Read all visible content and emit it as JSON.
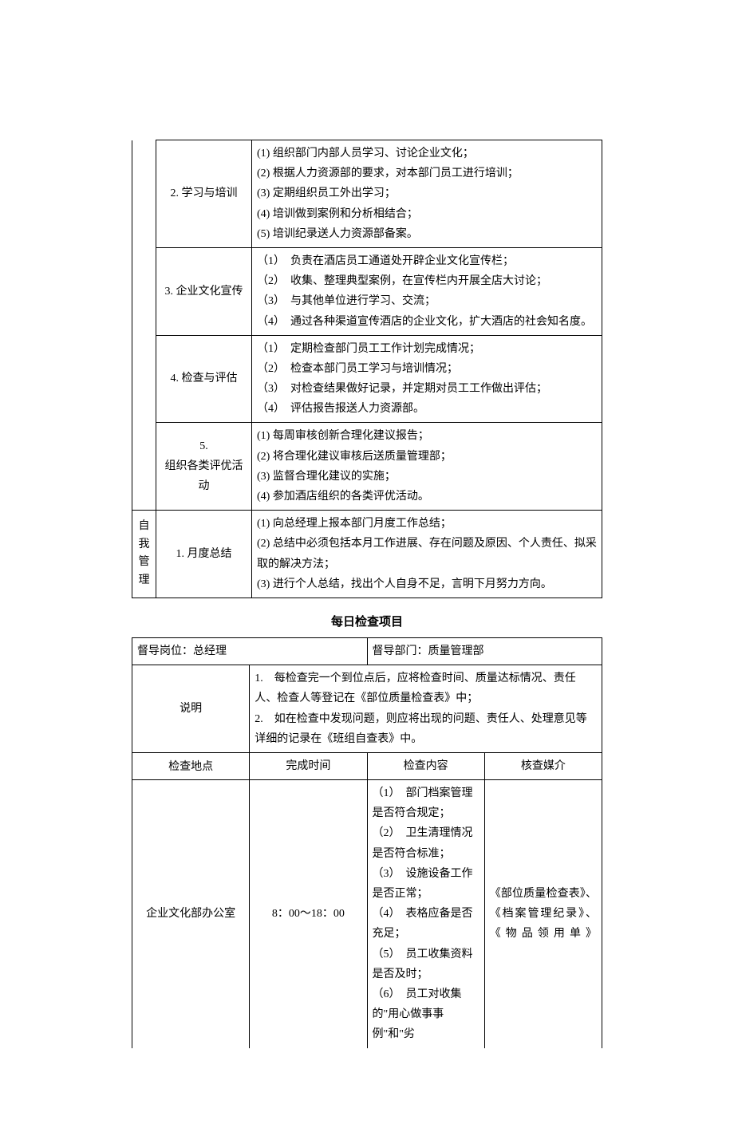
{
  "table1": {
    "rows": [
      {
        "num": "2.",
        "label": "学习与培训",
        "items": [
          "(1) 组织部门内部人员学习、讨论企业文化；",
          "(2) 根据人力资源部的要求，对本部门员工进行培训；",
          "(3) 定期组织员工外出学习；",
          "(4) 培训做到案例和分析相结合；",
          "(5) 培训纪录送人力资源部备案。"
        ]
      },
      {
        "num": "3.",
        "label": "企业文化宣传",
        "items": [
          "（1）　负责在酒店员工通道处开辟企业文化宣传栏；",
          "（2）　收集、整理典型案例，在宣传栏内开展全店大讨论；",
          "（3）　与其他单位进行学习、交流；",
          "（4）　通过各种渠道宣传酒店的企业文化，扩大酒店的社会知名度。"
        ]
      },
      {
        "num": "4.",
        "label": "检查与评估",
        "items": [
          "（1）　定期检查部门员工工作计划完成情况；",
          "（2）　检查本部门员工学习与培训情况；",
          "（3）　对检查结果做好记录，并定期对员工工作做出评估；",
          "（4）　评估报告报送人力资源部。"
        ]
      },
      {
        "num": "5.",
        "label": "组织各类评优活动",
        "items": [
          "(1) 每周审核创新合理化建议报告；",
          "(2) 将合理化建议审核后送质量管理部；",
          "(3) 监督合理化建议的实施；",
          "(4) 参加酒店组织的各类评优活动。"
        ]
      }
    ],
    "group2": {
      "header": "自我管理",
      "num": "1.",
      "label": "月度总结",
      "items": [
        "(1) 向总经理上报本部门月度工作总结；",
        "(2) 总结中必须包括本月工作进展、存在问题及原因、个人责任、拟采取的解决方法；",
        "(3) 进行个人总结，找出个人自身不足，言明下月努力方向。"
      ]
    }
  },
  "section_title": "每日检查项目",
  "table2": {
    "sup_post_label": "督导岗位：",
    "sup_post_value": "总经理",
    "sup_dept_label": "督导部门：",
    "sup_dept_value": "质量管理部",
    "desc_label": "说明",
    "desc_items": [
      "1.　每检查完一个到位点后，应将检查时间、质量达标情况、责任人、检查人等登记在《部位质量检查表》中；",
      "2.　如在检查中发现问题，则应将出现的问题、责任人、处理意见等详细的记录在《班组自查表》中。"
    ],
    "headers": {
      "c1": "检查地点",
      "c2": "完成时间",
      "c3": "检查内容",
      "c4": "核查媒介"
    },
    "row": {
      "place": "企业文化部办公室",
      "time": "8：00～18：00",
      "items": [
        "（1）　部门档案管理是否符合规定；",
        "（2）　卫生清理情况是否符合标准；",
        "（3）　设施设备工作是否正常；",
        "（4）　表格应备是否充足；",
        "（5）　员工收集资料是否及时；",
        "（6）　员工对收集的\"用心做事事例\"和\"劣"
      ],
      "media": "《部位质量检查表》、《档案管理纪录》、《物品领用单》"
    }
  }
}
